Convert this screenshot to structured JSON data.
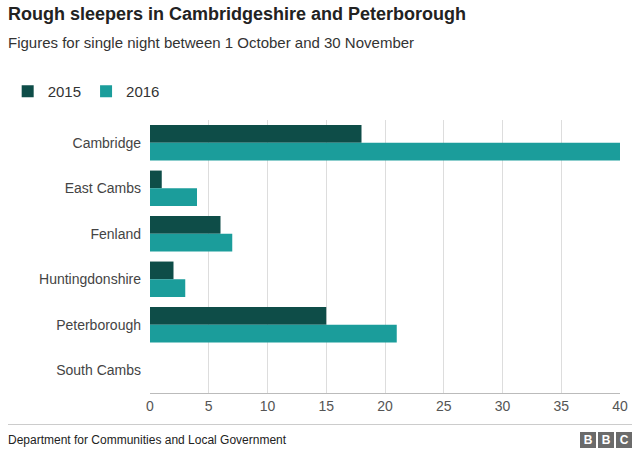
{
  "chart_data": {
    "type": "bar",
    "title": "Rough sleepers in Cambridgeshire and Peterborough",
    "subtitle": "Figures for single night between 1 October and 30 November",
    "source": "Department for Communities and Local Government",
    "logo": "BBC",
    "orientation": "horizontal",
    "categories": [
      "Cambridge",
      "East Cambs",
      "Fenland",
      "Huntingdonshire",
      "Peterborough",
      "South Cambs"
    ],
    "series": [
      {
        "name": "2015",
        "color": "#0e4d48",
        "values": [
          18,
          1,
          6,
          2,
          15,
          0
        ]
      },
      {
        "name": "2016",
        "color": "#1b9d9b",
        "values": [
          40,
          4,
          7,
          3,
          21,
          0
        ]
      }
    ],
    "xlim": [
      0,
      40
    ],
    "xticks": [
      0,
      5,
      10,
      15,
      20,
      25,
      30,
      35,
      40
    ],
    "grid": true,
    "legend": "top-left"
  }
}
